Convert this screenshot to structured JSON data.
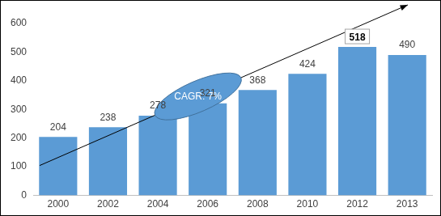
{
  "chart_data": {
    "type": "bar",
    "categories": [
      "2000",
      "2002",
      "2004",
      "2006",
      "2008",
      "2010",
      "2012",
      "2013"
    ],
    "values": [
      204,
      238,
      278,
      321,
      368,
      424,
      518,
      490
    ],
    "color": "#5b9bd5",
    "ylim": [
      0,
      600
    ],
    "yticks": [
      0,
      100,
      200,
      300,
      400,
      500,
      600
    ],
    "grid": false,
    "data_labels": true,
    "annotation": "CAGR: 7%"
  }
}
